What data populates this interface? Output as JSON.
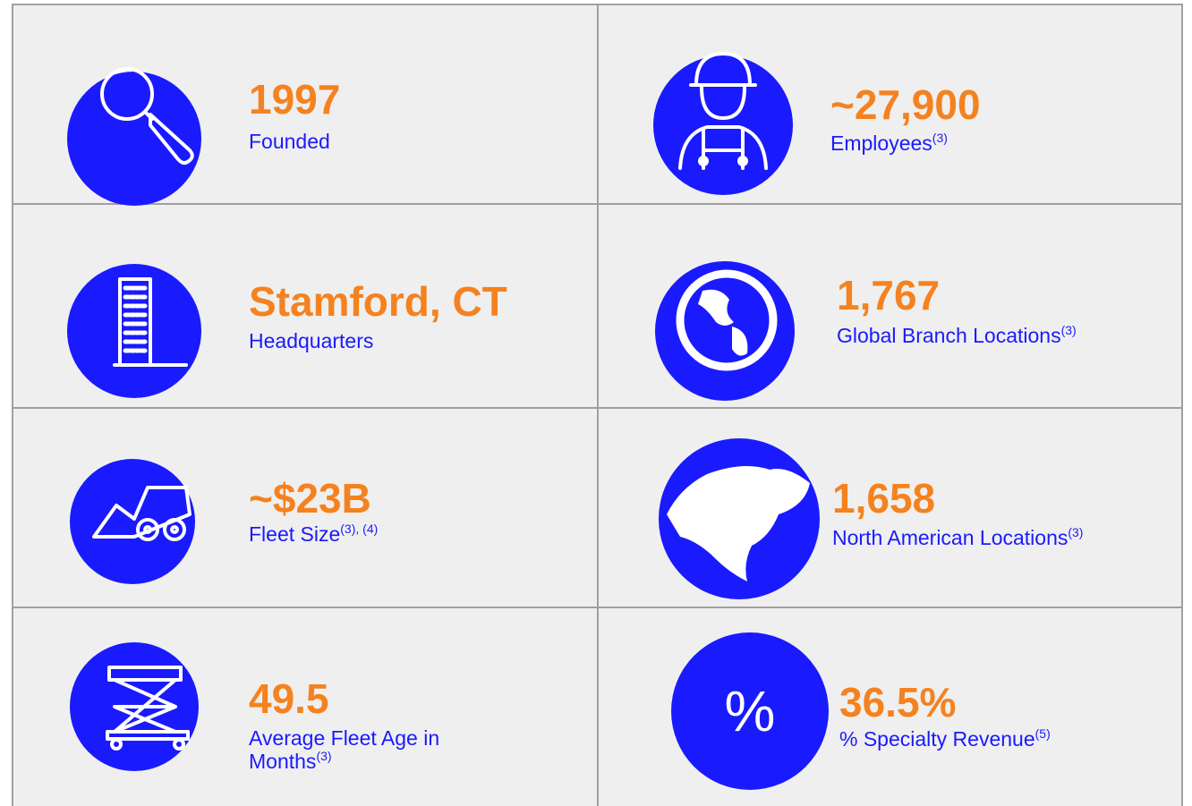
{
  "cells": [
    {
      "value": "1997",
      "label": "Founded"
    },
    {
      "value": "~27,900",
      "label": "Employees",
      "note": "(3)"
    },
    {
      "value": "Stamford, CT",
      "label": "Headquarters"
    },
    {
      "value": "1,767",
      "label": "Global Branch Locations",
      "note": "(3)"
    },
    {
      "value": "~$23B",
      "label": "Fleet Size",
      "note": "(3), (4)"
    },
    {
      "value": "1,658",
      "label": "North American Locations",
      "note": "(3)"
    },
    {
      "value": "49.5",
      "label": "Average Fleet Age in Months",
      "note": "(3)"
    },
    {
      "value": "36.5%",
      "label": "% Specialty Revenue",
      "note": "(5)",
      "icon_text": "%"
    }
  ]
}
